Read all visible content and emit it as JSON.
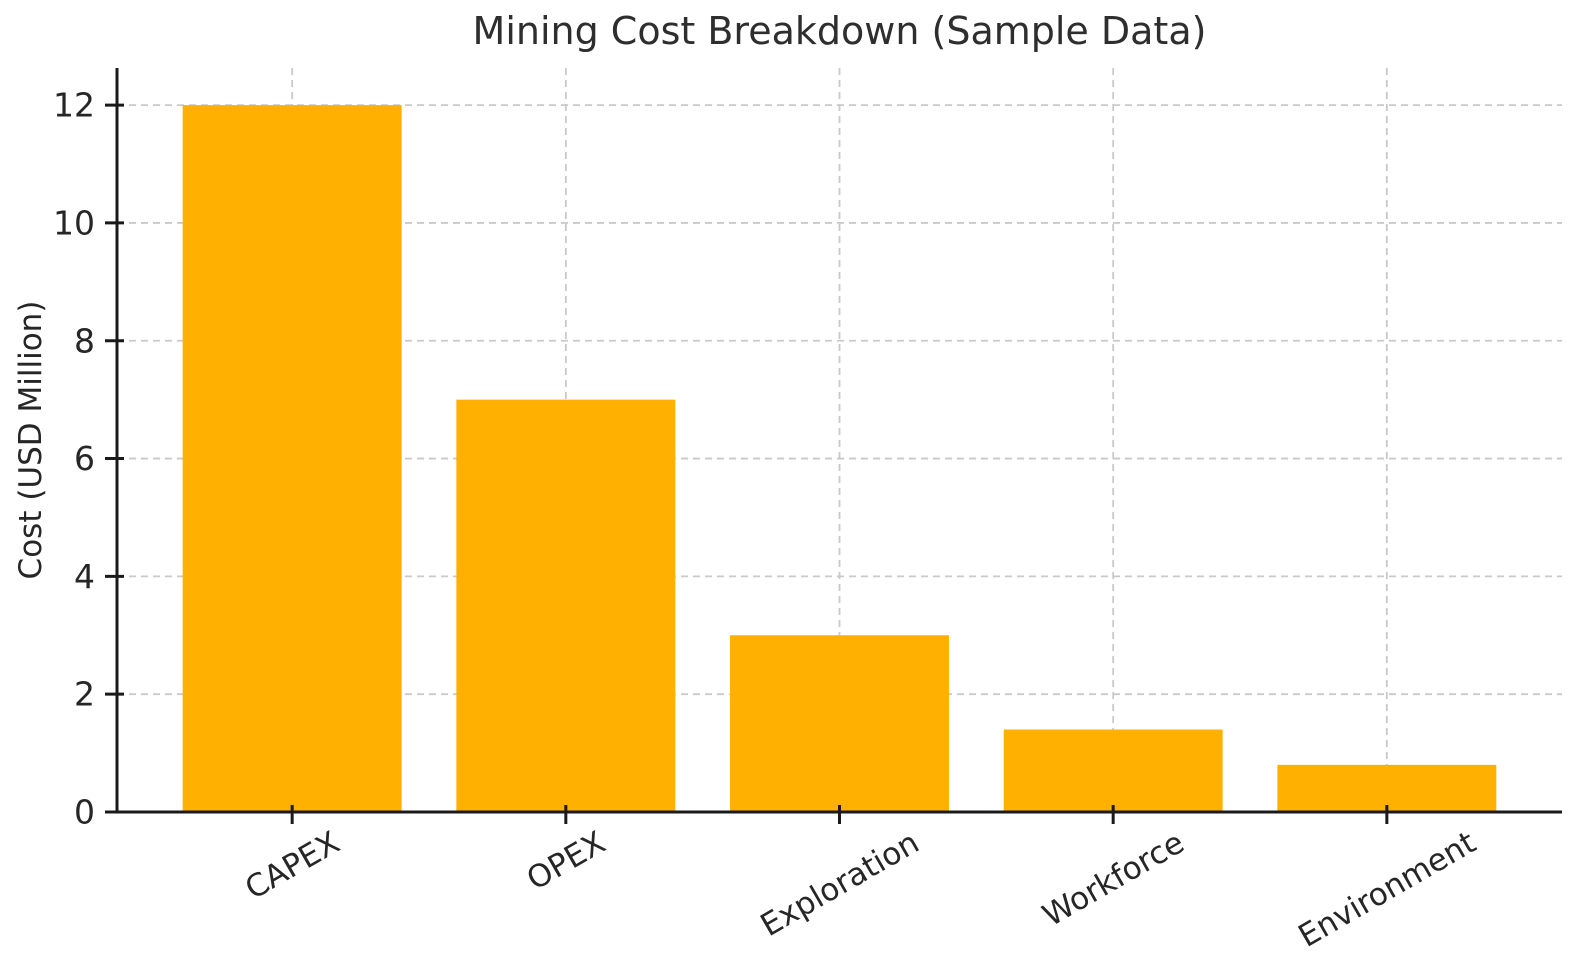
{
  "chart_data": {
    "type": "bar",
    "title": "Mining Cost Breakdown (Sample Data)",
    "ylabel": "Cost (USD Million)",
    "xlabel": "",
    "categories": [
      "CAPEX",
      "OPEX",
      "Exploration",
      "Workforce",
      "Environment"
    ],
    "values": [
      12,
      7,
      3,
      1.4,
      0.8
    ],
    "yticks": [
      0,
      2,
      4,
      6,
      8,
      10,
      12
    ],
    "ylim": [
      0,
      12.63
    ],
    "bar_color": "#FFB000",
    "grid": {
      "show": true,
      "axis": "both",
      "style": "dashed",
      "color": "#c9c9c9"
    },
    "spine_color": "#1a1a1a",
    "text_color": "#262626",
    "xtick_rotation_deg": 30,
    "legend": null
  }
}
